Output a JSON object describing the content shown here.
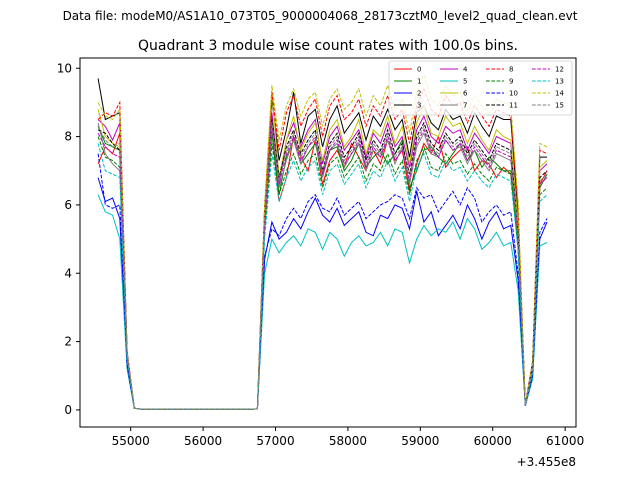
{
  "suptitle": "Data file: modeM0/AS1A10_073T05_9000004068_28173cztM0_level2_quad_clean.evt",
  "chart_data": {
    "type": "line",
    "title": "Quadrant 3 module wise count rates with 100.0s bins.",
    "xlabel": "",
    "ylabel": "",
    "x_offset_label": "+3.455e8",
    "xlim": [
      54300,
      61150
    ],
    "ylim": [
      -0.5,
      10.3
    ],
    "xticks": [
      55000,
      56000,
      57000,
      58000,
      59000,
      60000,
      61000
    ],
    "xtick_labels": [
      "55000",
      "56000",
      "57000",
      "58000",
      "59000",
      "60000",
      "61000"
    ],
    "yticks": [
      0,
      2,
      4,
      6,
      8,
      10
    ],
    "ytick_labels": [
      "0",
      "2",
      "4",
      "6",
      "8",
      "10"
    ],
    "grid": false,
    "legend_placement": "top-right",
    "legend_columns": 4,
    "x": [
      54550,
      54650,
      54750,
      54850,
      54950,
      55050,
      55150,
      55250,
      55350,
      55450,
      55550,
      55650,
      55750,
      55850,
      55950,
      56050,
      56150,
      56250,
      56350,
      56450,
      56550,
      56650,
      56750,
      56850,
      56950,
      57050,
      57150,
      57250,
      57350,
      57450,
      57550,
      57650,
      57750,
      57850,
      57950,
      58050,
      58150,
      58250,
      58350,
      58450,
      58550,
      58650,
      58750,
      58850,
      58950,
      59050,
      59150,
      59250,
      59350,
      59450,
      59550,
      59650,
      59750,
      59850,
      59950,
      60050,
      60150,
      60250,
      60350,
      60450,
      60550,
      60650,
      60750
    ],
    "series": [
      {
        "name": "0",
        "color": "#ff0000",
        "dash": "solid",
        "values": [
          7.2,
          7.7,
          7.5,
          8.1,
          1.6,
          0.05,
          0.02,
          0.02,
          0.02,
          0.02,
          0.02,
          0.02,
          0.02,
          0.02,
          0.02,
          0.02,
          0.02,
          0.02,
          0.02,
          0.02,
          0.02,
          0.02,
          0.03,
          5.3,
          8.2,
          6.1,
          6.8,
          8.0,
          7.4,
          7.0,
          7.9,
          6.6,
          7.3,
          7.6,
          7.1,
          7.8,
          7.4,
          7.0,
          7.6,
          7.2,
          7.9,
          7.3,
          7.6,
          6.4,
          7.2,
          7.8,
          7.5,
          8.0,
          7.1,
          7.4,
          7.6,
          7.7,
          7.0,
          7.3,
          7.2,
          6.8,
          7.1,
          6.9,
          4.8,
          0.15,
          1.2,
          6.6,
          7.0
        ]
      },
      {
        "name": "1",
        "color": "#008000",
        "dash": "solid",
        "values": [
          8.3,
          7.8,
          7.7,
          7.6,
          1.5,
          0.05,
          0.02,
          0.02,
          0.02,
          0.02,
          0.02,
          0.02,
          0.02,
          0.02,
          0.02,
          0.02,
          0.02,
          0.02,
          0.02,
          0.02,
          0.02,
          0.02,
          0.03,
          5.4,
          8.1,
          6.3,
          7.4,
          7.9,
          7.2,
          7.5,
          7.8,
          6.9,
          7.6,
          7.7,
          7.0,
          7.3,
          7.8,
          7.1,
          7.4,
          7.6,
          7.2,
          7.5,
          7.9,
          6.5,
          7.0,
          7.6,
          7.7,
          7.4,
          7.2,
          7.5,
          7.8,
          7.3,
          7.6,
          7.1,
          7.4,
          7.2,
          7.0,
          7.0,
          4.7,
          0.14,
          1.2,
          6.5,
          6.9
        ]
      },
      {
        "name": "2",
        "color": "#0000ff",
        "dash": "solid",
        "values": [
          6.8,
          6.1,
          6.2,
          5.6,
          1.3,
          0.05,
          0.02,
          0.02,
          0.02,
          0.02,
          0.02,
          0.02,
          0.02,
          0.02,
          0.02,
          0.02,
          0.02,
          0.02,
          0.02,
          0.02,
          0.02,
          0.02,
          0.03,
          4.4,
          5.5,
          5.0,
          5.2,
          5.6,
          5.3,
          5.8,
          6.2,
          5.7,
          5.5,
          5.9,
          5.4,
          5.6,
          5.8,
          5.2,
          5.1,
          5.7,
          5.6,
          6.0,
          5.9,
          5.3,
          6.4,
          5.5,
          5.8,
          5.1,
          5.4,
          5.7,
          5.3,
          6.0,
          5.6,
          5.0,
          5.5,
          5.8,
          5.3,
          5.4,
          3.8,
          0.12,
          1.0,
          5.0,
          5.5
        ]
      },
      {
        "name": "3",
        "color": "#000000",
        "dash": "solid",
        "values": [
          9.7,
          8.5,
          8.6,
          8.7,
          1.7,
          0.05,
          0.02,
          0.02,
          0.02,
          0.02,
          0.02,
          0.02,
          0.02,
          0.02,
          0.02,
          0.02,
          0.02,
          0.02,
          0.02,
          0.02,
          0.02,
          0.02,
          0.03,
          5.9,
          9.1,
          7.3,
          8.2,
          9.3,
          7.8,
          8.6,
          8.8,
          7.7,
          8.5,
          8.9,
          8.1,
          8.4,
          8.7,
          7.9,
          8.6,
          8.3,
          8.8,
          8.2,
          8.5,
          7.4,
          8.7,
          8.9,
          8.4,
          8.2,
          8.8,
          8.5,
          8.6,
          8.1,
          8.7,
          8.3,
          8.0,
          8.6,
          8.5,
          8.5,
          5.7,
          0.15,
          1.4,
          7.4,
          7.4
        ]
      },
      {
        "name": "4",
        "color": "#c000c0",
        "dash": "solid",
        "values": [
          8.5,
          8.3,
          7.9,
          8.4,
          1.7,
          0.05,
          0.02,
          0.02,
          0.02,
          0.02,
          0.02,
          0.02,
          0.02,
          0.02,
          0.02,
          0.02,
          0.02,
          0.02,
          0.02,
          0.02,
          0.02,
          0.02,
          0.03,
          5.6,
          8.7,
          6.6,
          7.9,
          8.4,
          7.7,
          8.2,
          8.5,
          7.2,
          8.0,
          8.3,
          7.6,
          7.9,
          8.2,
          7.4,
          8.1,
          7.8,
          8.4,
          7.7,
          8.0,
          7.1,
          8.2,
          8.6,
          8.0,
          7.8,
          8.3,
          8.1,
          8.2,
          7.6,
          8.1,
          7.8,
          7.5,
          8.0,
          7.9,
          7.8,
          5.4,
          0.15,
          1.3,
          7.0,
          7.2
        ]
      },
      {
        "name": "5",
        "color": "#00c0c0",
        "dash": "solid",
        "values": [
          6.3,
          5.8,
          5.7,
          5.0,
          1.2,
          0.05,
          0.02,
          0.02,
          0.02,
          0.02,
          0.02,
          0.02,
          0.02,
          0.02,
          0.02,
          0.02,
          0.02,
          0.02,
          0.02,
          0.02,
          0.02,
          0.02,
          0.03,
          4.0,
          5.0,
          4.6,
          4.9,
          5.1,
          4.8,
          5.3,
          5.2,
          4.7,
          5.2,
          5.0,
          4.5,
          4.9,
          5.1,
          4.8,
          4.9,
          5.2,
          4.8,
          5.3,
          5.2,
          4.3,
          5.0,
          5.4,
          5.1,
          5.3,
          5.2,
          5.5,
          5.0,
          5.6,
          5.3,
          4.7,
          4.9,
          5.2,
          4.8,
          4.9,
          3.5,
          0.12,
          0.9,
          4.8,
          4.9
        ]
      },
      {
        "name": "6",
        "color": "#c0c000",
        "dash": "solid",
        "values": [
          8.8,
          8.0,
          7.8,
          7.7,
          1.6,
          0.05,
          0.02,
          0.02,
          0.02,
          0.02,
          0.02,
          0.02,
          0.02,
          0.02,
          0.02,
          0.02,
          0.02,
          0.02,
          0.02,
          0.02,
          0.02,
          0.02,
          0.03,
          5.7,
          9.3,
          6.8,
          7.9,
          8.6,
          7.6,
          8.1,
          8.4,
          7.3,
          8.2,
          8.5,
          7.7,
          8.0,
          8.5,
          7.5,
          8.2,
          8.0,
          8.6,
          7.8,
          8.3,
          7.2,
          8.4,
          8.9,
          8.1,
          8.0,
          8.6,
          8.3,
          8.4,
          7.8,
          8.3,
          7.9,
          7.6,
          8.2,
          8.0,
          7.9,
          5.5,
          0.15,
          1.3,
          7.1,
          7.3
        ]
      },
      {
        "name": "7",
        "color": "#808080",
        "dash": "solid",
        "values": [
          8.4,
          7.5,
          7.2,
          7.0,
          1.5,
          0.05,
          0.02,
          0.02,
          0.02,
          0.02,
          0.02,
          0.02,
          0.02,
          0.02,
          0.02,
          0.02,
          0.02,
          0.02,
          0.02,
          0.02,
          0.02,
          0.02,
          0.03,
          5.4,
          8.3,
          6.5,
          7.3,
          7.9,
          7.2,
          7.7,
          7.9,
          6.8,
          7.6,
          7.8,
          7.1,
          7.5,
          7.8,
          7.0,
          7.6,
          7.4,
          7.9,
          7.2,
          7.7,
          6.6,
          7.7,
          8.1,
          7.5,
          7.4,
          7.9,
          7.6,
          7.7,
          7.2,
          7.6,
          7.3,
          7.0,
          7.5,
          7.4,
          7.3,
          5.1,
          0.14,
          1.2,
          6.6,
          6.8
        ]
      },
      {
        "name": "8",
        "color": "#ff0000",
        "dash": "dashed",
        "values": [
          8.5,
          8.7,
          8.6,
          9.0,
          1.7,
          0.05,
          0.02,
          0.02,
          0.02,
          0.02,
          0.02,
          0.02,
          0.02,
          0.02,
          0.02,
          0.02,
          0.02,
          0.02,
          0.02,
          0.02,
          0.02,
          0.02,
          0.03,
          5.9,
          9.3,
          7.6,
          8.7,
          9.2,
          8.3,
          8.8,
          9.1,
          8.0,
          8.9,
          9.2,
          8.5,
          8.7,
          9.1,
          8.3,
          8.9,
          8.6,
          9.2,
          8.5,
          8.8,
          7.8,
          8.9,
          9.4,
          8.8,
          8.6,
          9.2,
          8.9,
          9.0,
          8.4,
          8.9,
          8.6,
          8.3,
          8.8,
          8.7,
          8.6,
          5.9,
          0.16,
          1.4,
          7.6,
          7.5
        ]
      },
      {
        "name": "9",
        "color": "#008000",
        "dash": "dashed",
        "values": [
          8.0,
          7.4,
          7.3,
          7.1,
          1.5,
          0.05,
          0.02,
          0.02,
          0.02,
          0.02,
          0.02,
          0.02,
          0.02,
          0.02,
          0.02,
          0.02,
          0.02,
          0.02,
          0.02,
          0.02,
          0.02,
          0.02,
          0.03,
          5.2,
          7.8,
          6.3,
          7.0,
          7.5,
          6.9,
          7.3,
          7.5,
          6.5,
          7.2,
          7.4,
          6.8,
          7.1,
          7.4,
          6.7,
          7.2,
          7.0,
          7.5,
          6.9,
          7.3,
          6.3,
          7.3,
          7.7,
          7.1,
          7.0,
          7.5,
          7.2,
          7.3,
          6.9,
          7.2,
          6.9,
          6.7,
          7.1,
          7.0,
          6.9,
          4.8,
          0.14,
          1.2,
          6.3,
          6.5
        ]
      },
      {
        "name": "10",
        "color": "#0000ff",
        "dash": "dashed",
        "values": [
          7.5,
          6.0,
          5.9,
          6.0,
          1.3,
          0.05,
          0.02,
          0.02,
          0.02,
          0.02,
          0.02,
          0.02,
          0.02,
          0.02,
          0.02,
          0.02,
          0.02,
          0.02,
          0.02,
          0.02,
          0.02,
          0.02,
          0.03,
          4.5,
          5.3,
          5.1,
          5.6,
          5.9,
          5.6,
          6.1,
          6.3,
          5.9,
          5.8,
          6.2,
          5.7,
          5.9,
          6.1,
          5.6,
          5.8,
          6.0,
          6.1,
          6.3,
          6.2,
          5.6,
          6.5,
          6.2,
          6.3,
          5.8,
          6.1,
          6.4,
          6.0,
          6.5,
          6.2,
          5.5,
          5.8,
          6.0,
          5.7,
          5.8,
          4.0,
          0.12,
          1.0,
          5.2,
          5.6
        ]
      },
      {
        "name": "11",
        "color": "#000000",
        "dash": "dashed",
        "values": [
          8.2,
          8.1,
          7.8,
          7.6,
          1.6,
          0.05,
          0.02,
          0.02,
          0.02,
          0.02,
          0.02,
          0.02,
          0.02,
          0.02,
          0.02,
          0.02,
          0.02,
          0.02,
          0.02,
          0.02,
          0.02,
          0.02,
          0.03,
          5.5,
          8.5,
          6.8,
          7.7,
          8.2,
          7.5,
          7.9,
          8.2,
          7.0,
          7.8,
          8.1,
          7.4,
          7.7,
          8.1,
          7.3,
          7.9,
          7.6,
          8.2,
          7.5,
          7.8,
          6.9,
          8.0,
          8.4,
          7.8,
          7.6,
          8.1,
          7.8,
          8.0,
          7.5,
          7.9,
          7.6,
          7.3,
          7.8,
          7.7,
          7.6,
          5.2,
          0.14,
          1.3,
          6.8,
          7.0
        ]
      },
      {
        "name": "12",
        "color": "#c000c0",
        "dash": "dashed",
        "values": [
          8.1,
          7.7,
          7.5,
          7.4,
          1.6,
          0.05,
          0.02,
          0.02,
          0.02,
          0.02,
          0.02,
          0.02,
          0.02,
          0.02,
          0.02,
          0.02,
          0.02,
          0.02,
          0.02,
          0.02,
          0.02,
          0.02,
          0.03,
          5.4,
          8.3,
          6.6,
          7.5,
          8.0,
          7.3,
          7.7,
          8.0,
          6.9,
          7.6,
          7.9,
          7.2,
          7.5,
          7.9,
          7.1,
          7.7,
          7.4,
          8.0,
          7.3,
          7.6,
          6.7,
          7.8,
          8.2,
          7.6,
          7.4,
          7.9,
          7.6,
          7.8,
          7.3,
          7.7,
          7.4,
          7.1,
          7.6,
          7.5,
          7.4,
          5.1,
          0.14,
          1.2,
          6.6,
          6.8
        ]
      },
      {
        "name": "13",
        "color": "#00c0c0",
        "dash": "dashed",
        "values": [
          7.8,
          7.0,
          6.9,
          6.8,
          1.5,
          0.05,
          0.02,
          0.02,
          0.02,
          0.02,
          0.02,
          0.02,
          0.02,
          0.02,
          0.02,
          0.02,
          0.02,
          0.02,
          0.02,
          0.02,
          0.02,
          0.02,
          0.03,
          5.0,
          7.5,
          6.1,
          6.8,
          7.3,
          6.7,
          7.1,
          7.3,
          6.3,
          7.0,
          7.2,
          6.6,
          6.9,
          7.2,
          6.5,
          7.0,
          6.8,
          7.3,
          6.7,
          7.1,
          6.1,
          7.1,
          7.5,
          6.9,
          6.8,
          7.3,
          7.0,
          7.1,
          6.7,
          7.0,
          6.7,
          6.5,
          6.9,
          6.8,
          6.7,
          4.7,
          0.13,
          1.1,
          6.1,
          6.3
        ]
      },
      {
        "name": "14",
        "color": "#c0c000",
        "dash": "dashed",
        "values": [
          9.0,
          8.6,
          8.5,
          8.8,
          1.7,
          0.05,
          0.02,
          0.02,
          0.02,
          0.02,
          0.02,
          0.02,
          0.02,
          0.02,
          0.02,
          0.02,
          0.02,
          0.02,
          0.02,
          0.02,
          0.02,
          0.02,
          0.03,
          6.0,
          9.5,
          7.9,
          8.9,
          9.4,
          8.6,
          9.1,
          9.3,
          8.3,
          9.1,
          9.4,
          8.8,
          9.0,
          9.4,
          8.6,
          9.2,
          8.9,
          9.5,
          8.8,
          9.1,
          8.1,
          9.3,
          9.8,
          9.1,
          8.9,
          9.5,
          9.2,
          9.3,
          8.7,
          9.2,
          8.9,
          8.6,
          9.1,
          9.0,
          8.9,
          6.1,
          0.16,
          1.4,
          7.8,
          7.7
        ]
      },
      {
        "name": "15",
        "color": "#808080",
        "dash": "dashed",
        "values": [
          8.3,
          7.9,
          7.7,
          7.8,
          1.6,
          0.05,
          0.02,
          0.02,
          0.02,
          0.02,
          0.02,
          0.02,
          0.02,
          0.02,
          0.02,
          0.02,
          0.02,
          0.02,
          0.02,
          0.02,
          0.02,
          0.02,
          0.03,
          5.5,
          8.4,
          6.7,
          7.6,
          8.1,
          7.4,
          7.8,
          8.1,
          7.0,
          7.7,
          8.0,
          7.3,
          7.6,
          8.0,
          7.2,
          7.8,
          7.5,
          8.1,
          7.4,
          7.7,
          6.8,
          7.9,
          8.3,
          7.7,
          7.5,
          8.0,
          7.7,
          7.9,
          7.4,
          7.8,
          7.5,
          7.2,
          7.7,
          7.6,
          7.5,
          5.2,
          0.14,
          1.2,
          6.7,
          6.9
        ]
      }
    ]
  }
}
